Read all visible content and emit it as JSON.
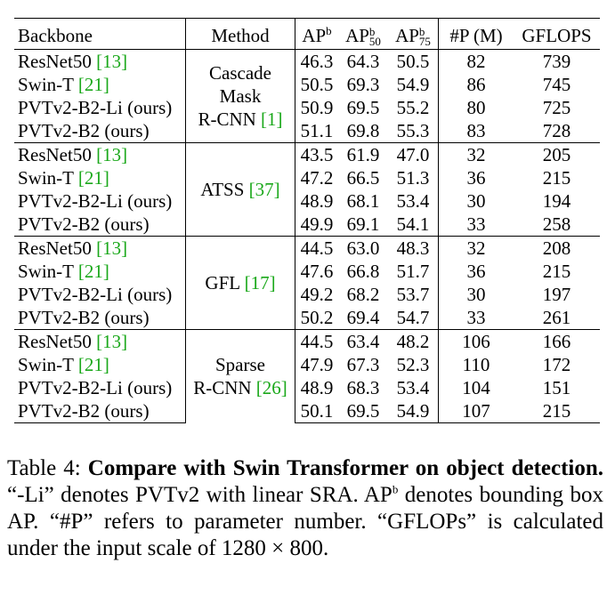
{
  "header": {
    "backbone": "Backbone",
    "method": "Method",
    "ap_b": "AP",
    "ap_b_sup": "b",
    "ap50": "AP",
    "ap50_sup": "b",
    "ap50_sub": "50",
    "ap75": "AP",
    "ap75_sup": "b",
    "ap75_sub": "75",
    "params": "#P (M)",
    "gflops": "GFLOPS"
  },
  "groups": [
    {
      "method_lines": [
        "Cascade",
        "Mask",
        "R-CNN"
      ],
      "method_ref": "[1]",
      "rows": [
        {
          "backbone": "ResNet50",
          "ref": "[13]",
          "ap": "46.3",
          "ap50": "64.3",
          "ap75": "50.5",
          "params": "82",
          "gflops": "739"
        },
        {
          "backbone": "Swin-T",
          "ref": "[21]",
          "ap": "50.5",
          "ap50": "69.3",
          "ap75": "54.9",
          "params": "86",
          "gflops": "745"
        },
        {
          "backbone": "PVTv2-B2-Li (ours)",
          "ref": "",
          "ap": "50.9",
          "ap50": "69.5",
          "ap75": "55.2",
          "params": "80",
          "gflops": "725"
        },
        {
          "backbone": "PVTv2-B2 (ours)",
          "ref": "",
          "ap": "51.1",
          "ap50": "69.8",
          "ap75": "55.3",
          "params": "83",
          "gflops": "728"
        }
      ]
    },
    {
      "method_lines": [
        "ATSS"
      ],
      "method_ref": "[37]",
      "rows": [
        {
          "backbone": "ResNet50",
          "ref": "[13]",
          "ap": "43.5",
          "ap50": "61.9",
          "ap75": "47.0",
          "params": "32",
          "gflops": "205"
        },
        {
          "backbone": "Swin-T",
          "ref": "[21]",
          "ap": "47.2",
          "ap50": "66.5",
          "ap75": "51.3",
          "params": "36",
          "gflops": "215"
        },
        {
          "backbone": "PVTv2-B2-Li (ours)",
          "ref": "",
          "ap": "48.9",
          "ap50": "68.1",
          "ap75": "53.4",
          "params": "30",
          "gflops": "194"
        },
        {
          "backbone": "PVTv2-B2 (ours)",
          "ref": "",
          "ap": "49.9",
          "ap50": "69.1",
          "ap75": "54.1",
          "params": "33",
          "gflops": "258"
        }
      ]
    },
    {
      "method_lines": [
        "GFL"
      ],
      "method_ref": "[17]",
      "rows": [
        {
          "backbone": "ResNet50",
          "ref": "[13]",
          "ap": "44.5",
          "ap50": "63.0",
          "ap75": "48.3",
          "params": "32",
          "gflops": "208"
        },
        {
          "backbone": "Swin-T",
          "ref": "[21]",
          "ap": "47.6",
          "ap50": "66.8",
          "ap75": "51.7",
          "params": "36",
          "gflops": "215"
        },
        {
          "backbone": "PVTv2-B2-Li (ours)",
          "ref": "",
          "ap": "49.2",
          "ap50": "68.2",
          "ap75": "53.7",
          "params": "30",
          "gflops": "197"
        },
        {
          "backbone": "PVTv2-B2 (ours)",
          "ref": "",
          "ap": "50.2",
          "ap50": "69.4",
          "ap75": "54.7",
          "params": "33",
          "gflops": "261"
        }
      ]
    },
    {
      "method_lines": [
        "Sparse",
        "R-CNN"
      ],
      "method_ref": "[26]",
      "rows": [
        {
          "backbone": "ResNet50",
          "ref": "[13]",
          "ap": "44.5",
          "ap50": "63.4",
          "ap75": "48.2",
          "params": "106",
          "gflops": "166"
        },
        {
          "backbone": "Swin-T",
          "ref": "[21]",
          "ap": "47.9",
          "ap50": "67.3",
          "ap75": "52.3",
          "params": "110",
          "gflops": "172"
        },
        {
          "backbone": "PVTv2-B2-Li (ours)",
          "ref": "",
          "ap": "48.9",
          "ap50": "68.3",
          "ap75": "53.4",
          "params": "104",
          "gflops": "151"
        },
        {
          "backbone": "PVTv2-B2 (ours)",
          "ref": "",
          "ap": "50.1",
          "ap50": "69.5",
          "ap75": "54.9",
          "params": "107",
          "gflops": "215"
        }
      ]
    }
  ],
  "caption": {
    "label": "Table 4:",
    "title": "Compare with Swin Transformer on object detection.",
    "t1": "“-Li” denotes PVTv2 with linear SRA. AP",
    "t1_sup": "b",
    "t2": "denotes bounding box AP. “#P” refers to parameter number. “GFLOPs” is calculated under the input scale of",
    "scale": "1280 × 800."
  }
}
